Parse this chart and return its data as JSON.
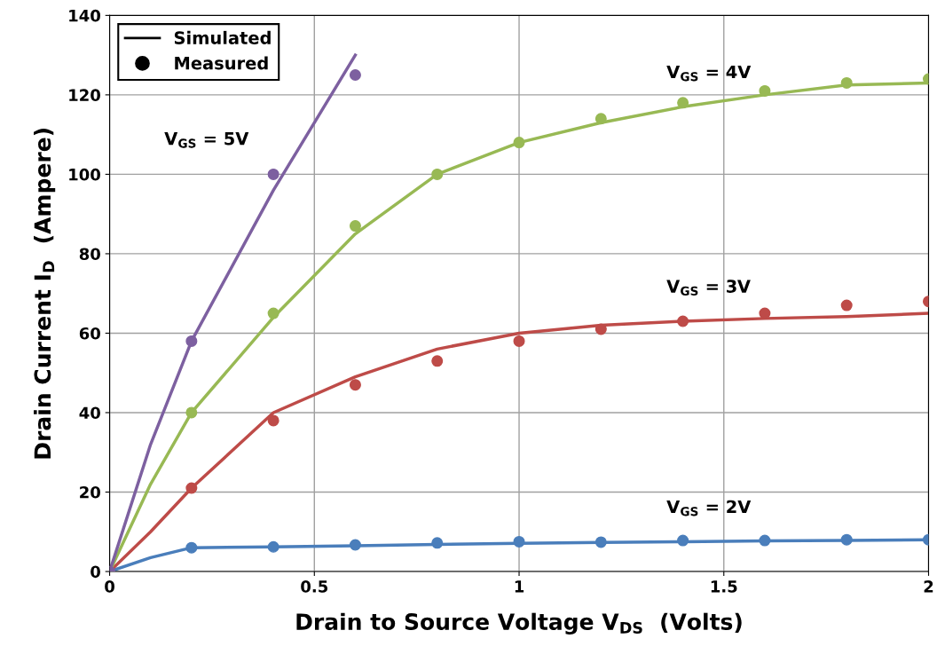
{
  "chart_data": {
    "type": "line",
    "xlabel": "Drain to Source Voltage V$_{DS}$  (Volts)",
    "ylabel": "Drain Current I$_{D}$  (Ampere)",
    "xlim": [
      0,
      2
    ],
    "ylim": [
      0,
      140
    ],
    "xticks": [
      0,
      0.5,
      1,
      1.5,
      2
    ],
    "yticks": [
      0,
      20,
      40,
      60,
      80,
      100,
      120,
      140
    ],
    "grid": true,
    "legend": "top left",
    "series": [
      {
        "name": "V$_{GS}$ = 2V",
        "color": "#4a7ebb",
        "x": [
          0,
          0.1,
          0.2,
          0.4,
          0.6,
          0.8,
          1,
          1.2,
          1.4,
          1.6,
          1.8,
          2
        ],
        "values": [
          0,
          3.5,
          6,
          6.2,
          6.5,
          6.8,
          7.1,
          7.3,
          7.5,
          7.7,
          7.8,
          8
        ]
      },
      {
        "name": "V$_{GS}$ = 3V",
        "color": "#be4b48",
        "x": [
          0,
          0.1,
          0.2,
          0.4,
          0.6,
          0.8,
          1,
          1.2,
          1.4,
          1.6,
          1.8,
          2
        ],
        "values": [
          0,
          10,
          21,
          40,
          49,
          56,
          60,
          62,
          63,
          63.7,
          64.2,
          65
        ]
      },
      {
        "name": "V$_{GS}$ = 4V",
        "color": "#98b954",
        "x": [
          0,
          0.1,
          0.2,
          0.4,
          0.6,
          0.8,
          1,
          1.2,
          1.4,
          1.6,
          1.8,
          2
        ],
        "values": [
          0,
          22,
          40,
          64,
          85,
          100,
          108,
          113,
          117,
          120,
          122.5,
          123
        ]
      },
      {
        "name": "V$_{GS}$ = 5V",
        "color": "#7d60a0",
        "x": [
          0,
          0.1,
          0.2,
          0.4,
          0.6
        ],
        "values": [
          0,
          32,
          58,
          96,
          130
        ]
      },
      {
        "type": "scatter",
        "color": "#4a7ebb",
        "x": [
          0.2,
          0.4,
          0.6,
          0.8,
          1,
          1.2,
          1.4,
          1.6,
          1.8,
          2
        ],
        "values": [
          6,
          6.2,
          6.7,
          7.2,
          7.5,
          7.4,
          7.8,
          7.8,
          8,
          8
        ]
      },
      {
        "type": "scatter",
        "color": "#be4b48",
        "x": [
          0.2,
          0.4,
          0.6,
          0.8,
          1,
          1.2,
          1.4,
          1.6,
          1.8,
          2
        ],
        "values": [
          21,
          38,
          47,
          53,
          58,
          61,
          63,
          65,
          67,
          68
        ]
      },
      {
        "type": "scatter",
        "color": "#98b954",
        "x": [
          0.2,
          0.4,
          0.6,
          0.8,
          1,
          1.2,
          1.4,
          1.6,
          1.8,
          2
        ],
        "values": [
          40,
          65,
          87,
          100,
          108,
          114,
          118,
          121,
          123,
          124
        ]
      },
      {
        "type": "scatter",
        "color": "#7d60a0",
        "x": [
          0,
          0.2,
          0.4,
          0.6
        ],
        "values": [
          0,
          58,
          100,
          125
        ]
      },
      {
        "type": "line",
        "name": "Simulated",
        "color": "#000000"
      },
      {
        "type": "scatter",
        "name": "Measured",
        "color": "#000000"
      }
    ]
  }
}
